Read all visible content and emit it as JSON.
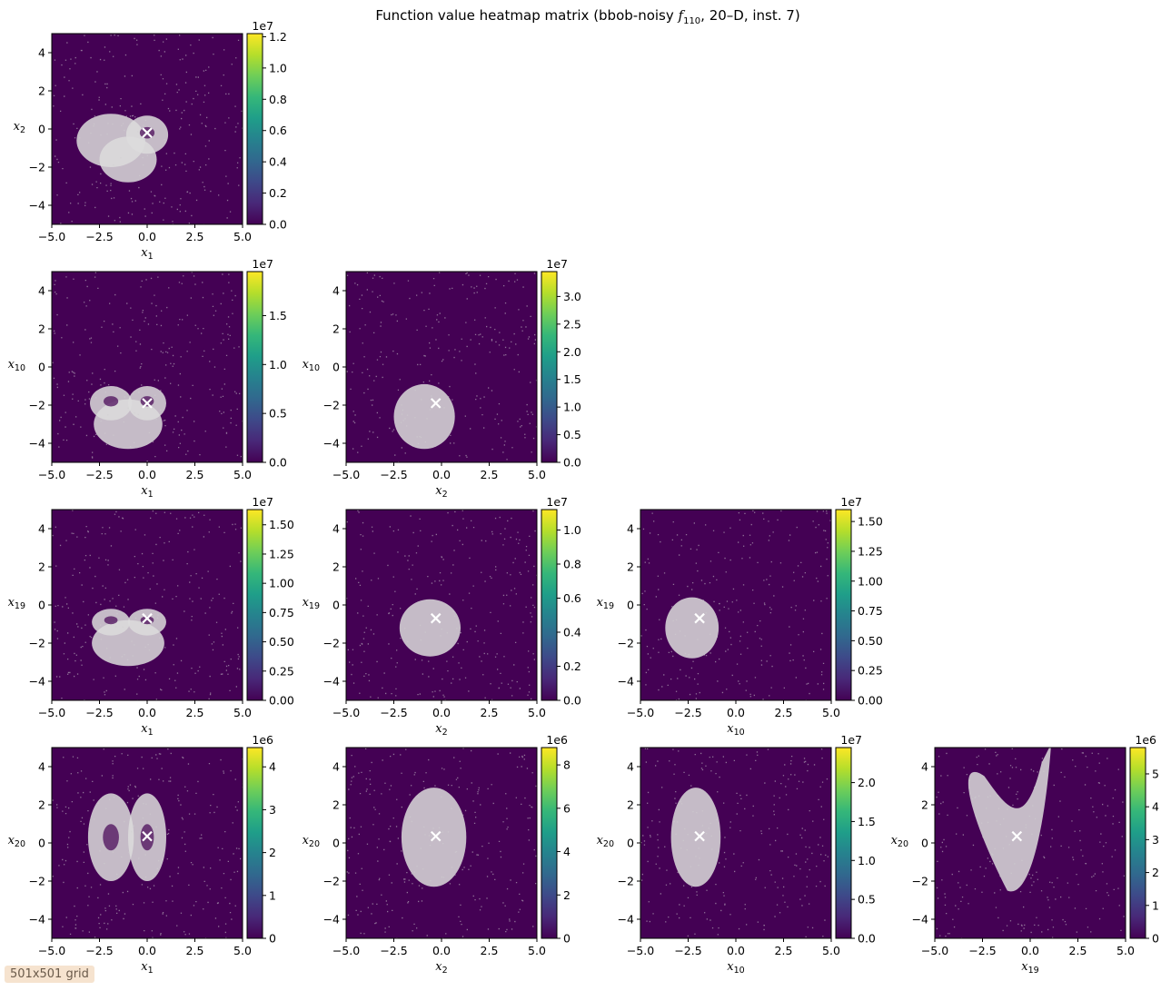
{
  "figure": {
    "title": "Function value heatmap matrix (bbob-noisy f110, 20–D, inst. 7)",
    "title_parts": {
      "pre": "Function value heatmap matrix (bbob-noisy ",
      "f": "f",
      "sub": "110",
      "post": ", 20–D, inst. 7)"
    },
    "grid_note": "501x501 grid"
  },
  "chart_data": [
    {
      "type": "heatmap",
      "row": 0,
      "col": 0,
      "xvar": {
        "base": "x",
        "sub": "1"
      },
      "yvar": {
        "base": "x",
        "sub": "2"
      },
      "xlim": [
        -5,
        5
      ],
      "ylim": [
        -5,
        5
      ],
      "xticks": [
        "−5.0",
        "−2.5",
        "0.0",
        "2.5",
        "5.0"
      ],
      "yticks": [
        "−4",
        "−2",
        "0",
        "2",
        "4"
      ],
      "optimum": [
        0.0,
        -0.2
      ],
      "cbar": {
        "multiplier": "1e7",
        "max": 1.22,
        "ticks": [
          "0.0",
          "0.2",
          "0.4",
          "0.6",
          "0.8",
          "1.0",
          "1.2"
        ],
        "tick_values": [
          0,
          0.2,
          0.4,
          0.6,
          0.8,
          1.0,
          1.2
        ]
      }
    },
    {
      "type": "heatmap",
      "row": 1,
      "col": 0,
      "xvar": {
        "base": "x",
        "sub": "1"
      },
      "yvar": {
        "base": "x",
        "sub": "10"
      },
      "xlim": [
        -5,
        5
      ],
      "ylim": [
        -5,
        5
      ],
      "xticks": [
        "−5.0",
        "−2.5",
        "0.0",
        "2.5",
        "5.0"
      ],
      "yticks": [
        "−4",
        "−2",
        "0",
        "2",
        "4"
      ],
      "optimum": [
        0.0,
        -1.9
      ],
      "cbar": {
        "multiplier": "1e7",
        "max": 1.95,
        "ticks": [
          "0.0",
          "0.5",
          "1.0",
          "1.5"
        ],
        "tick_values": [
          0,
          0.5,
          1.0,
          1.5
        ]
      }
    },
    {
      "type": "heatmap",
      "row": 1,
      "col": 1,
      "xvar": {
        "base": "x",
        "sub": "2"
      },
      "yvar": {
        "base": "x",
        "sub": "10"
      },
      "xlim": [
        -5,
        5
      ],
      "ylim": [
        -5,
        5
      ],
      "xticks": [
        "−5.0",
        "−2.5",
        "0.0",
        "2.5",
        "5.0"
      ],
      "yticks": [
        "−4",
        "−2",
        "0",
        "2",
        "4"
      ],
      "optimum": [
        -0.3,
        -1.9
      ],
      "cbar": {
        "multiplier": "1e7",
        "max": 3.45,
        "ticks": [
          "0.0",
          "0.5",
          "1.0",
          "1.5",
          "2.0",
          "2.5",
          "3.0"
        ],
        "tick_values": [
          0,
          0.5,
          1.0,
          1.5,
          2.0,
          2.5,
          3.0
        ]
      }
    },
    {
      "type": "heatmap",
      "row": 2,
      "col": 0,
      "xvar": {
        "base": "x",
        "sub": "1"
      },
      "yvar": {
        "base": "x",
        "sub": "19"
      },
      "xlim": [
        -5,
        5
      ],
      "ylim": [
        -5,
        5
      ],
      "xticks": [
        "−5.0",
        "−2.5",
        "0.0",
        "2.5",
        "5.0"
      ],
      "yticks": [
        "−4",
        "−2",
        "0",
        "2",
        "4"
      ],
      "optimum": [
        0.0,
        -0.7
      ],
      "cbar": {
        "multiplier": "1e7",
        "max": 1.63,
        "ticks": [
          "0.00",
          "0.25",
          "0.50",
          "0.75",
          "1.00",
          "1.25",
          "1.50"
        ],
        "tick_values": [
          0,
          0.25,
          0.5,
          0.75,
          1.0,
          1.25,
          1.5
        ]
      }
    },
    {
      "type": "heatmap",
      "row": 2,
      "col": 1,
      "xvar": {
        "base": "x",
        "sub": "2"
      },
      "yvar": {
        "base": "x",
        "sub": "19"
      },
      "xlim": [
        -5,
        5
      ],
      "ylim": [
        -5,
        5
      ],
      "xticks": [
        "−5.0",
        "−2.5",
        "0.0",
        "2.5",
        "5.0"
      ],
      "yticks": [
        "−4",
        "−2",
        "0",
        "2",
        "4"
      ],
      "optimum": [
        -0.3,
        -0.7
      ],
      "cbar": {
        "multiplier": "1e7",
        "max": 1.12,
        "ticks": [
          "0.0",
          "0.2",
          "0.4",
          "0.6",
          "0.8",
          "1.0"
        ],
        "tick_values": [
          0,
          0.2,
          0.4,
          0.6,
          0.8,
          1.0
        ]
      }
    },
    {
      "type": "heatmap",
      "row": 2,
      "col": 2,
      "xvar": {
        "base": "x",
        "sub": "10"
      },
      "yvar": {
        "base": "x",
        "sub": "19"
      },
      "xlim": [
        -5,
        5
      ],
      "ylim": [
        -5,
        5
      ],
      "xticks": [
        "−5.0",
        "−2.5",
        "0.0",
        "2.5",
        "5.0"
      ],
      "yticks": [
        "−4",
        "−2",
        "0",
        "2",
        "4"
      ],
      "optimum": [
        -1.9,
        -0.7
      ],
      "cbar": {
        "multiplier": "1e7",
        "max": 1.6,
        "ticks": [
          "0.00",
          "0.25",
          "0.50",
          "0.75",
          "1.00",
          "1.25",
          "1.50"
        ],
        "tick_values": [
          0,
          0.25,
          0.5,
          0.75,
          1.0,
          1.25,
          1.5
        ]
      }
    },
    {
      "type": "heatmap",
      "row": 3,
      "col": 0,
      "xvar": {
        "base": "x",
        "sub": "1"
      },
      "yvar": {
        "base": "x",
        "sub": "20"
      },
      "xlim": [
        -5,
        5
      ],
      "ylim": [
        -5,
        5
      ],
      "xticks": [
        "−5.0",
        "−2.5",
        "0.0",
        "2.5",
        "5.0"
      ],
      "yticks": [
        "−4",
        "−2",
        "0",
        "2",
        "4"
      ],
      "optimum": [
        0.0,
        0.35
      ],
      "cbar": {
        "multiplier": "1e6",
        "max": 4.45,
        "ticks": [
          "0",
          "1",
          "2",
          "3",
          "4"
        ],
        "tick_values": [
          0,
          1,
          2,
          3,
          4
        ]
      }
    },
    {
      "type": "heatmap",
      "row": 3,
      "col": 1,
      "xvar": {
        "base": "x",
        "sub": "2"
      },
      "yvar": {
        "base": "x",
        "sub": "20"
      },
      "xlim": [
        -5,
        5
      ],
      "ylim": [
        -5,
        5
      ],
      "xticks": [
        "−5.0",
        "−2.5",
        "0.0",
        "2.5",
        "5.0"
      ],
      "yticks": [
        "−4",
        "−2",
        "0",
        "2",
        "4"
      ],
      "optimum": [
        -0.3,
        0.35
      ],
      "cbar": {
        "multiplier": "1e6",
        "max": 8.8,
        "ticks": [
          "0",
          "2",
          "4",
          "6",
          "8"
        ],
        "tick_values": [
          0,
          2,
          4,
          6,
          8
        ]
      }
    },
    {
      "type": "heatmap",
      "row": 3,
      "col": 2,
      "xvar": {
        "base": "x",
        "sub": "10"
      },
      "yvar": {
        "base": "x",
        "sub": "20"
      },
      "xlim": [
        -5,
        5
      ],
      "ylim": [
        -5,
        5
      ],
      "xticks": [
        "−5.0",
        "−2.5",
        "0.0",
        "2.5",
        "5.0"
      ],
      "yticks": [
        "−4",
        "−2",
        "0",
        "2",
        "4"
      ],
      "optimum": [
        -1.9,
        0.35
      ],
      "cbar": {
        "multiplier": "1e7",
        "max": 2.45,
        "ticks": [
          "0.0",
          "0.5",
          "1.0",
          "1.5",
          "2.0"
        ],
        "tick_values": [
          0,
          0.5,
          1.0,
          1.5,
          2.0
        ]
      }
    },
    {
      "type": "heatmap",
      "row": 3,
      "col": 3,
      "xvar": {
        "base": "x",
        "sub": "19"
      },
      "yvar": {
        "base": "x",
        "sub": "20"
      },
      "xlim": [
        -5,
        5
      ],
      "ylim": [
        -5,
        5
      ],
      "xticks": [
        "−5.0",
        "−2.5",
        "0.0",
        "2.5",
        "5.0"
      ],
      "yticks": [
        "−4",
        "−2",
        "0",
        "2",
        "4"
      ],
      "optimum": [
        -0.7,
        0.35
      ],
      "cbar": {
        "multiplier": "1e6",
        "max": 5.8,
        "ticks": [
          "0",
          "1",
          "2",
          "3",
          "4",
          "5"
        ],
        "tick_values": [
          0,
          1,
          2,
          3,
          4,
          5
        ]
      }
    }
  ],
  "colors": {
    "field": "#440154",
    "low_region": "#dcdcdc",
    "marker": "#ffffff",
    "colormap": [
      "#440154",
      "#482878",
      "#3e4989",
      "#31688e",
      "#26828e",
      "#1f9e89",
      "#35b779",
      "#6ece58",
      "#b5de2b",
      "#fde725"
    ]
  }
}
